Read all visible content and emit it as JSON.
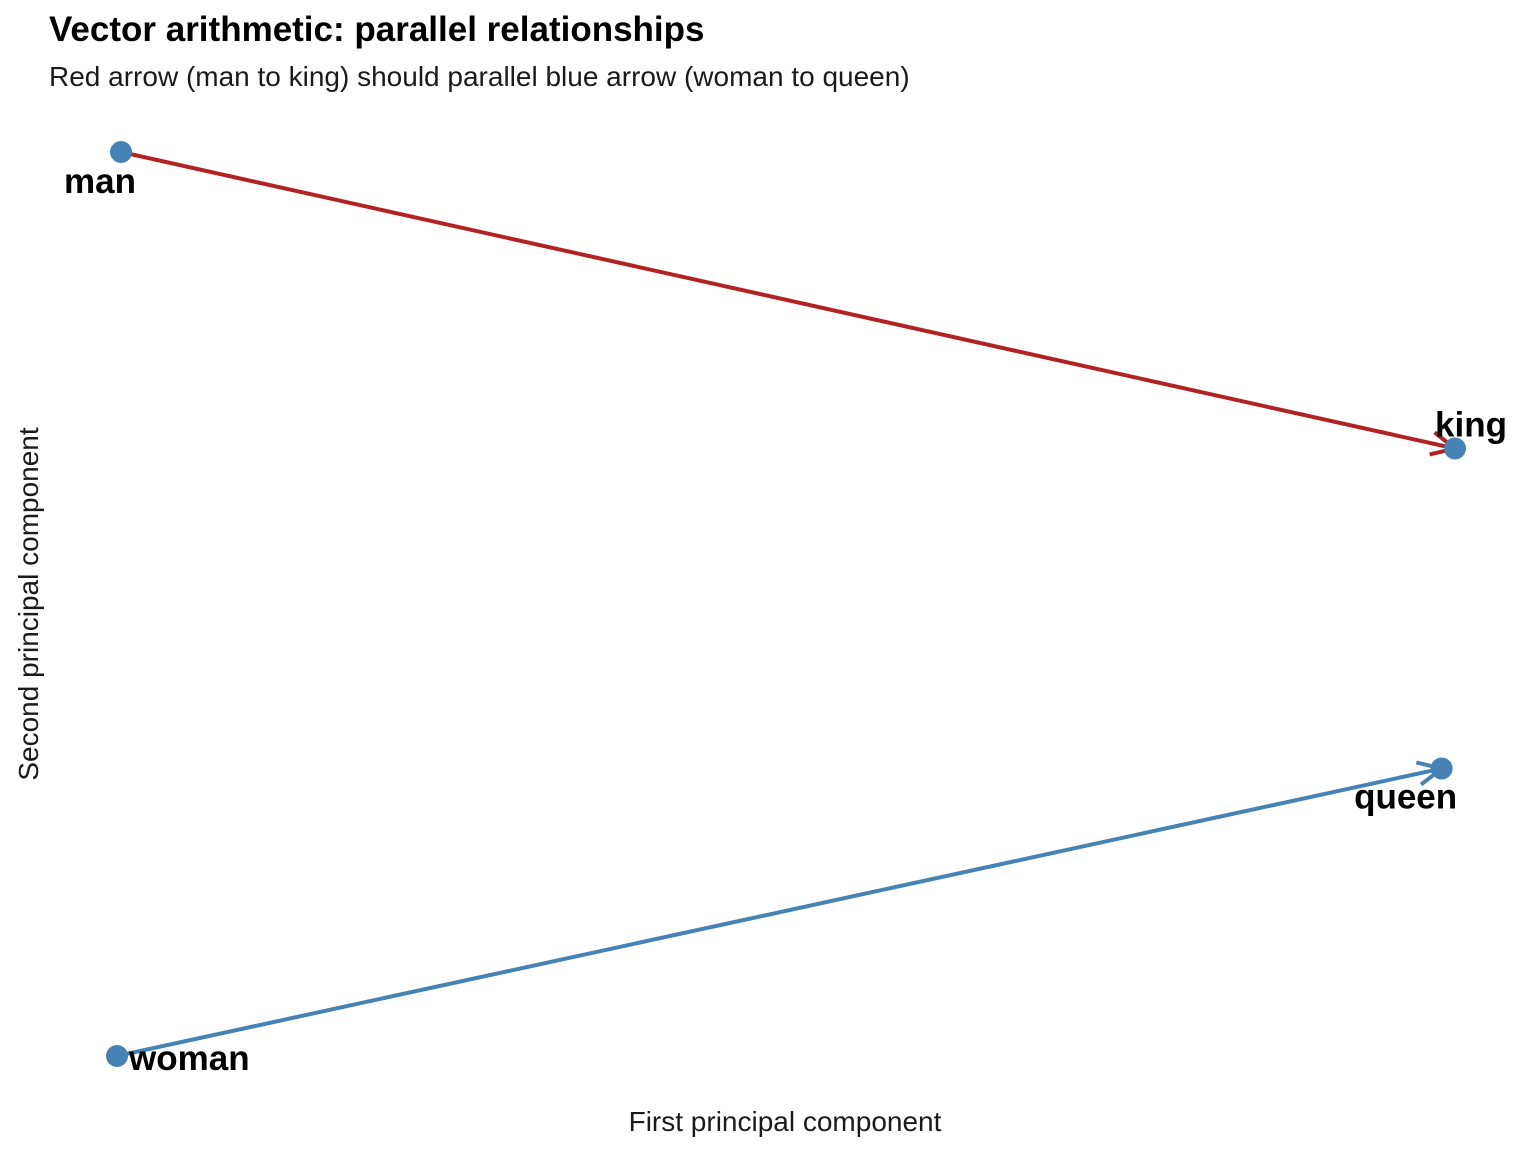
{
  "chart_data": {
    "type": "scatter",
    "title": "Vector arithmetic: parallel relationships",
    "subtitle": "Red arrow (man to king) should parallel blue arrow (woman to queen)",
    "xlabel": "First principal component",
    "ylabel": "Second principal component",
    "grid": false,
    "axis_ticks": false,
    "xlim": [
      0,
      1
    ],
    "ylim": [
      0,
      1
    ],
    "point_color": "#4682B4",
    "points": [
      {
        "word": "man",
        "x": 0.003,
        "y": 1.0
      },
      {
        "word": "king",
        "x": 1.0,
        "y": 0.672
      },
      {
        "word": "woman",
        "x": 0.0,
        "y": 0.0
      },
      {
        "word": "queen",
        "x": 0.99,
        "y": 0.318
      }
    ],
    "arrows": [
      {
        "from": "man",
        "to": "king",
        "color": "#B22222"
      },
      {
        "from": "woman",
        "to": "queen",
        "color": "#4682B4"
      }
    ]
  }
}
